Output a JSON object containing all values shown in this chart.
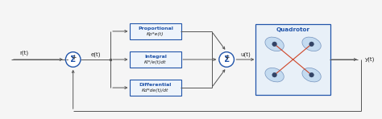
{
  "bg_color": "#f5f5f5",
  "line_color": "#555555",
  "box_border_color": "#2255aa",
  "circle_color": "#2255aa",
  "pid_box_fill": "#eef4fb",
  "quad_box_fill": "#e8f0f8",
  "quad_box_border": "#2255aa",
  "text_color": "#222222",
  "label_color": "#2255aa",
  "proportional_label": "Proportional",
  "proportional_formula": "Kp*e(t)",
  "integral_label": "Integral",
  "integral_formula": "Ki*/e(t)dt",
  "differential_label": "Differential",
  "differential_formula": "Kd*de(t)/dt",
  "quadrotor_title": "Quadrotor",
  "input_label": "r(t)",
  "error_label": "e(t)",
  "output_u_label": "u(t)",
  "output_y_label": "y(t)",
  "sum_label": "Σ",
  "figsize": [
    4.74,
    1.48
  ],
  "dpi": 100,
  "xlim": [
    0,
    10
  ],
  "ylim": [
    0,
    3.1
  ]
}
